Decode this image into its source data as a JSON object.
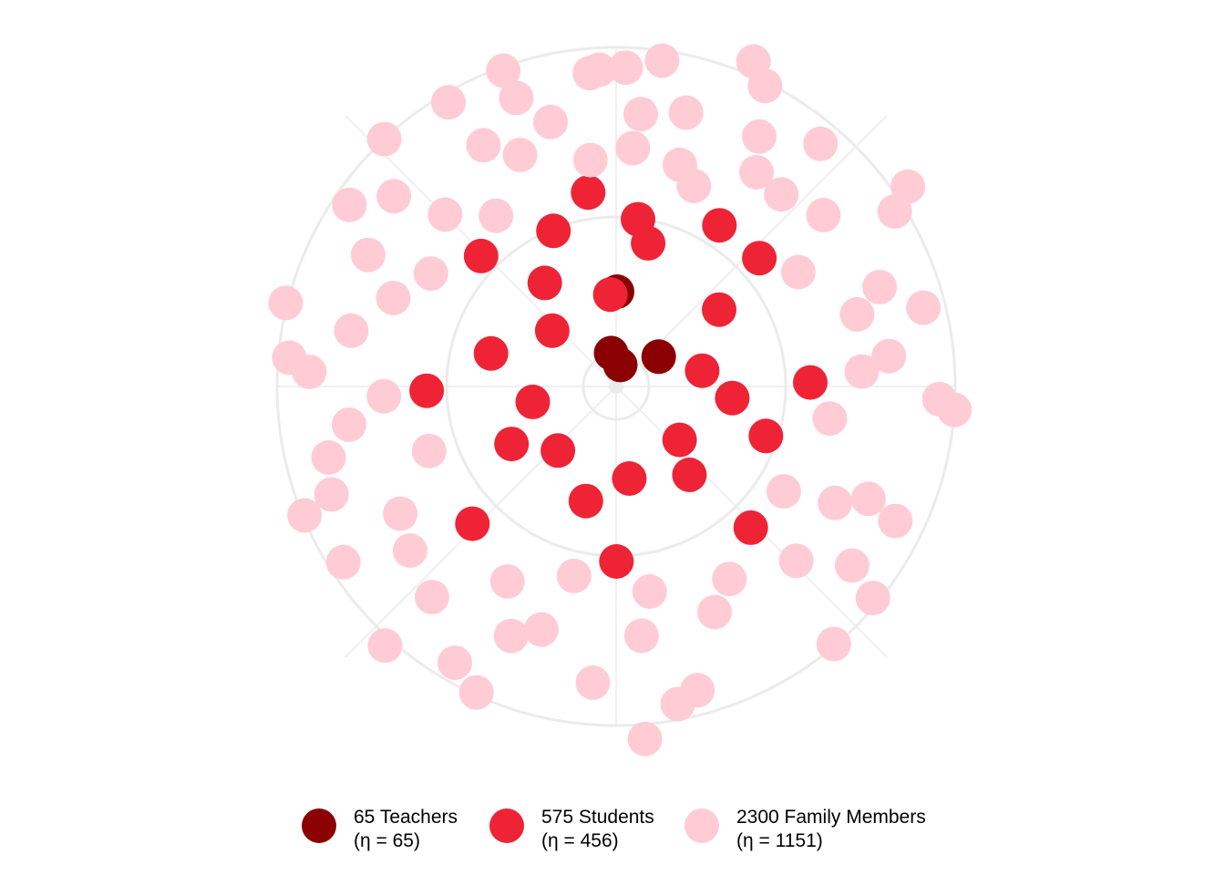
{
  "chart_data": {
    "type": "scatter",
    "coordinate_system": "polar",
    "grid": true,
    "legend_position": "bottom",
    "title": "",
    "xlabel": "",
    "ylabel": "",
    "grid_color": "#ebebeb",
    "groups": [
      {
        "key": "teachers",
        "line1": "65 Teachers",
        "line2": "(η = 65)",
        "color": "#8b0000",
        "points": [
          [
            0.19,
            24
          ],
          [
            -0.15,
            37
          ],
          [
            0.96,
            57
          ],
          [
            0.01,
            104
          ]
        ]
      },
      {
        "key": "students",
        "line1": "575 Students",
        "line2": "(η = 456)",
        "color": "#ee2436",
        "points": [
          [
            1.39,
            96
          ],
          [
            2.27,
            91
          ],
          [
            3.0,
            102
          ],
          [
            3.88,
            95
          ],
          [
            4.53,
            93
          ],
          [
            5.43,
            93
          ],
          [
            6.22,
            101
          ],
          [
            0.93,
            141
          ],
          [
            1.67,
            128
          ],
          [
            2.45,
            126
          ],
          [
            3.4,
            130
          ],
          [
            4.21,
            131
          ],
          [
            4.97,
            142
          ],
          [
            5.68,
            138
          ],
          [
            0.22,
            161
          ],
          [
            0.84,
            211
          ],
          [
            1.55,
            213
          ],
          [
            2.38,
            214
          ],
          [
            3.14,
            192
          ],
          [
            3.95,
            218
          ],
          [
            4.69,
            208
          ],
          [
            5.48,
            206
          ],
          [
            6.14,
            215
          ],
          [
            0.13,
            185
          ],
          [
            1.89,
            173
          ],
          [
            0.57,
            210
          ],
          [
            5.9,
            184
          ]
        ]
      },
      {
        "key": "family",
        "line1": "2300 Family Members",
        "line2": "(η = 1151)",
        "color": "#ffccd5",
        "points": [
          [
            0.07,
            262
          ],
          [
            0.71,
            278
          ],
          [
            1.28,
            276
          ],
          [
            2.06,
            272
          ],
          [
            2.73,
            270
          ],
          [
            3.44,
            279
          ],
          [
            4.18,
            275
          ],
          [
            5.09,
            263
          ],
          [
            5.89,
            275
          ],
          [
            0.28,
            253
          ],
          [
            1.01,
            236
          ],
          [
            1.72,
            237
          ],
          [
            2.34,
            275
          ],
          [
            2.61,
            245
          ],
          [
            3.65,
            245
          ],
          [
            4.38,
            217
          ],
          [
            5.26,
            238
          ],
          [
            5.5,
            266
          ],
          [
            6.17,
            250
          ],
          [
            0.25,
            310
          ],
          [
            0.37,
            236
          ],
          [
            0.52,
            316
          ],
          [
            1.21,
            309
          ],
          [
            1.99,
            303
          ],
          [
            2.22,
            325
          ],
          [
            3.22,
            326
          ],
          [
            3.86,
            307
          ],
          [
            4.47,
            325
          ],
          [
            4.67,
            255
          ],
          [
            5.78,
            302
          ],
          [
            6.04,
            299
          ],
          [
            0.03,
            350
          ],
          [
            0.7,
            348
          ],
          [
            1.32,
            348
          ],
          [
            2.02,
            340
          ],
          [
            2.88,
            345
          ],
          [
            3.67,
            351
          ],
          [
            4.35,
            334
          ],
          [
            4.92,
            297
          ],
          [
            5.42,
            321
          ],
          [
            6.2,
            345
          ],
          [
            0.14,
            361
          ],
          [
            0.46,
            368
          ],
          [
            1.01,
            361
          ],
          [
            1.61,
            355
          ],
          [
            2.26,
            365
          ],
          [
            2.95,
            355
          ],
          [
            3.57,
            369
          ],
          [
            4.14,
            356
          ],
          [
            4.8,
            360
          ],
          [
            5.31,
            354
          ],
          [
            5.94,
            368
          ],
          [
            0.4,
            387
          ],
          [
            0.97,
            388
          ],
          [
            1.64,
            372
          ],
          [
            2.44,
            370
          ],
          [
            3.06,
            388
          ],
          [
            3.87,
            381
          ],
          [
            4.32,
            370
          ],
          [
            4.96,
            374
          ],
          [
            5.53,
            372
          ],
          [
            5.75,
            362
          ],
          [
            6.23,
            348
          ],
          [
            0.88,
            295
          ],
          [
            1.46,
            301
          ],
          [
            3.04,
            275
          ],
          [
            3.36,
            213
          ],
          [
            2.98,
            228
          ],
          [
            3.54,
            297
          ],
          [
            4.04,
            289
          ],
          [
            4.57,
            296
          ],
          [
            5.67,
            229
          ],
          [
            5.2,
            308
          ],
          [
            5.95,
            335
          ],
          [
            2.13,
            217
          ],
          [
            1.51,
            270
          ],
          [
            0.58,
            281
          ],
          [
            0.09,
            300
          ],
          [
            4.76,
            337
          ]
        ]
      }
    ]
  }
}
